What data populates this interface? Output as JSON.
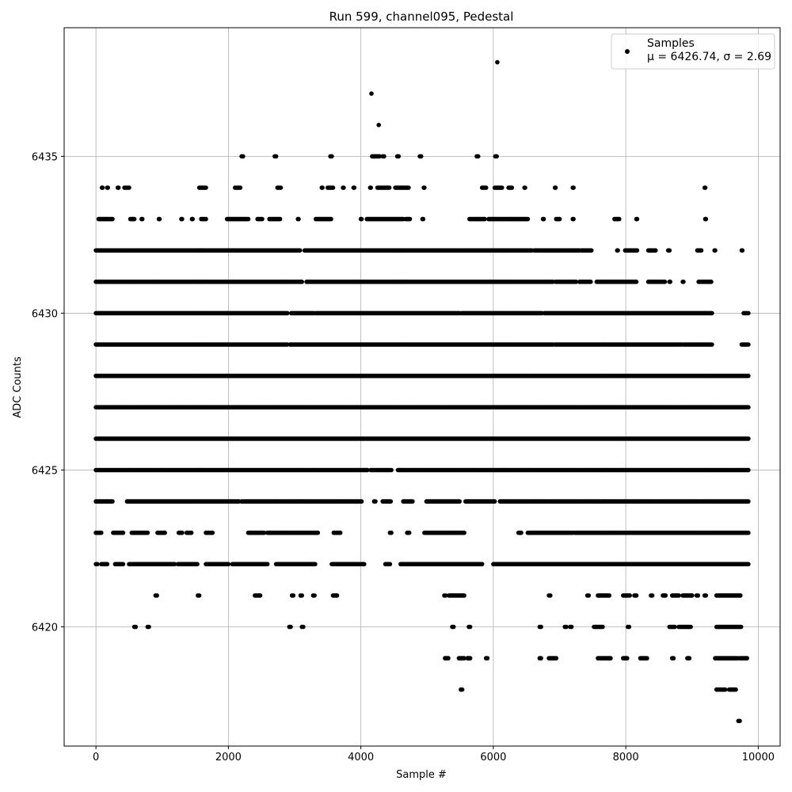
{
  "chart_data": {
    "type": "scatter",
    "title": "Run 599, channel095, Pedestal",
    "xlabel": "Sample #",
    "ylabel": "ADC Counts",
    "xlim": [
      -480,
      10330
    ],
    "ylim": [
      6416.2,
      6439.1
    ],
    "xticks": [
      0,
      2000,
      4000,
      6000,
      8000,
      10000
    ],
    "xtick_labels": [
      "0",
      "2000",
      "4000",
      "6000",
      "8000",
      "10000"
    ],
    "yticks": [
      6420,
      6425,
      6430,
      6435
    ],
    "ytick_labels": [
      "6420",
      "6425",
      "6430",
      "6435"
    ],
    "grid": true,
    "legend": {
      "placement": "top-right",
      "series_label": "Samples",
      "stats_label": "μ = 6426.74, σ = 2.69"
    },
    "marker_color": "#000000",
    "series": [
      {
        "name": "Samples",
        "x_range": [
          0,
          9850
        ],
        "level_bands": [
          {
            "y": 6435,
            "x_ranges": [
              [
                2200,
                2220
              ],
              [
                2700,
                2720
              ],
              [
                3540,
                3560
              ],
              [
                4170,
                4280
              ],
              [
                4330,
                4350
              ],
              [
                4550,
                4570
              ],
              [
                4890,
                4910
              ],
              [
                5750,
                5770
              ],
              [
                6030,
                6050
              ]
            ]
          },
          {
            "y": 6434,
            "x_ranges": [
              [
                90,
                100
              ],
              [
                170,
                180
              ],
              [
                330,
                340
              ],
              [
                430,
                500
              ],
              [
                1560,
                1660
              ],
              [
                2100,
                2180
              ],
              [
                2740,
                2790
              ],
              [
                3410,
                3420
              ],
              [
                3500,
                3580
              ],
              [
                3730,
                3740
              ],
              [
                3890,
                3900
              ],
              [
                4140,
                4150
              ],
              [
                4250,
                4430
              ],
              [
                4520,
                4720
              ],
              [
                4950,
                4960
              ],
              [
                5830,
                5890
              ],
              [
                6020,
                6130
              ],
              [
                6230,
                6280
              ],
              [
                6470,
                6480
              ],
              [
                6930,
                6940
              ],
              [
                7200,
                7210
              ],
              [
                9190,
                9200
              ]
            ]
          },
          {
            "y": 6433,
            "x_ranges": [
              [
                40,
                250
              ],
              [
                520,
                580
              ],
              [
                690,
                700
              ],
              [
                950,
                960
              ],
              [
                1290,
                1300
              ],
              [
                1450,
                1460
              ],
              [
                1590,
                1660
              ],
              [
                1980,
                2300
              ],
              [
                2440,
                2510
              ],
              [
                2620,
                2780
              ],
              [
                3050,
                3060
              ],
              [
                3320,
                3550
              ],
              [
                4000,
                4010
              ],
              [
                4090,
                4640
              ],
              [
                4680,
                4740
              ],
              [
                4930,
                4940
              ],
              [
                5640,
                5870
              ],
              [
                5930,
                6190
              ],
              [
                6210,
                6520
              ],
              [
                6750,
                6760
              ],
              [
                6950,
                7000
              ],
              [
                7200,
                7210
              ],
              [
                7830,
                7900
              ],
              [
                8160,
                8170
              ],
              [
                9200,
                9210
              ]
            ]
          },
          {
            "y": 6432,
            "x_ranges": [
              [
                0,
                3080
              ],
              [
                3150,
                6580
              ],
              [
                6620,
                7300
              ],
              [
                7330,
                7480
              ],
              [
                7870,
                7880
              ],
              [
                7990,
                8170
              ],
              [
                8340,
                8450
              ],
              [
                8640,
                8660
              ],
              [
                9080,
                9140
              ],
              [
                9340,
                9350
              ],
              [
                9750,
                9760
              ]
            ]
          },
          {
            "y": 6431,
            "x_ranges": [
              [
                0,
                3110
              ],
              [
                3180,
                6900
              ],
              [
                6940,
                7250
              ],
              [
                7300,
                7470
              ],
              [
                7560,
                8160
              ],
              [
                8340,
                8590
              ],
              [
                8660,
                8670
              ],
              [
                8860,
                8870
              ],
              [
                9100,
                9290
              ]
            ]
          },
          {
            "y": 6430,
            "x_ranges": [
              [
                0,
                2890
              ],
              [
                2950,
                3290
              ],
              [
                3320,
                5490
              ],
              [
                5520,
                6730
              ],
              [
                6770,
                9300
              ],
              [
                9780,
                9850
              ]
            ]
          },
          {
            "y": 6429,
            "x_ranges": [
              [
                0,
                2890
              ],
              [
                2930,
                6900
              ],
              [
                6930,
                8840
              ],
              [
                8870,
                9300
              ],
              [
                9750,
                9850
              ]
            ]
          },
          {
            "y": 6428,
            "x_ranges": [
              [
                0,
                9850
              ]
            ]
          },
          {
            "y": 6427,
            "x_ranges": [
              [
                0,
                9850
              ]
            ]
          },
          {
            "y": 6426,
            "x_ranges": [
              [
                0,
                9850
              ]
            ]
          },
          {
            "y": 6425,
            "x_ranges": [
              [
                0,
                4100
              ],
              [
                4150,
                4460
              ],
              [
                4560,
                9850
              ]
            ]
          },
          {
            "y": 6424,
            "x_ranges": [
              [
                0,
                250
              ],
              [
                470,
                2160
              ],
              [
                2200,
                3290
              ],
              [
                3310,
                4010
              ],
              [
                4200,
                4220
              ],
              [
                4330,
                4450
              ],
              [
                4640,
                4780
              ],
              [
                4990,
                5490
              ],
              [
                5580,
                6020
              ],
              [
                6100,
                9850
              ]
            ]
          },
          {
            "y": 6423,
            "x_ranges": [
              [
                0,
                80
              ],
              [
                260,
                410
              ],
              [
                540,
                780
              ],
              [
                930,
                1040
              ],
              [
                1250,
                1300
              ],
              [
                1370,
                1440
              ],
              [
                1660,
                1760
              ],
              [
                2300,
                2540
              ],
              [
                2590,
                3350
              ],
              [
                3590,
                3690
              ],
              [
                4440,
                4460
              ],
              [
                4700,
                4730
              ],
              [
                4960,
                5560
              ],
              [
                6380,
                6420
              ],
              [
                6520,
                7200
              ],
              [
                7230,
                9850
              ]
            ]
          },
          {
            "y": 6422,
            "x_ranges": [
              [
                0,
                20
              ],
              [
                80,
                170
              ],
              [
                290,
                410
              ],
              [
                500,
                1190
              ],
              [
                1240,
                1530
              ],
              [
                1660,
                2000
              ],
              [
                2060,
                2590
              ],
              [
                2720,
                3310
              ],
              [
                3560,
                4050
              ],
              [
                4370,
                4440
              ],
              [
                4600,
                5830
              ],
              [
                6000,
                9850
              ]
            ]
          },
          {
            "y": 6421,
            "x_ranges": [
              [
                900,
                920
              ],
              [
                1540,
                1560
              ],
              [
                2400,
                2480
              ],
              [
                2960,
                2980
              ],
              [
                3090,
                3110
              ],
              [
                3280,
                3300
              ],
              [
                3580,
                3640
              ],
              [
                5260,
                5280
              ],
              [
                5330,
                5560
              ],
              [
                6840,
                6860
              ],
              [
                7420,
                7440
              ],
              [
                7580,
                7750
              ],
              [
                7960,
                8060
              ],
              [
                8130,
                8160
              ],
              [
                8380,
                8400
              ],
              [
                8560,
                8600
              ],
              [
                8700,
                8800
              ],
              [
                8860,
                9000
              ],
              [
                9070,
                9090
              ],
              [
                9190,
                9210
              ],
              [
                9370,
                9730
              ]
            ]
          },
          {
            "y": 6420,
            "x_ranges": [
              [
                580,
                600
              ],
              [
                780,
                800
              ],
              [
                2920,
                2940
              ],
              [
                3110,
                3130
              ],
              [
                5380,
                5400
              ],
              [
                5630,
                5650
              ],
              [
                6700,
                6720
              ],
              [
                7080,
                7100
              ],
              [
                7160,
                7180
              ],
              [
                7520,
                7650
              ],
              [
                8030,
                8050
              ],
              [
                8660,
                8740
              ],
              [
                8800,
                8980
              ],
              [
                9370,
                9740
              ]
            ]
          },
          {
            "y": 6419,
            "x_ranges": [
              [
                5270,
                5320
              ],
              [
                5480,
                5560
              ],
              [
                5610,
                5650
              ],
              [
                5890,
                5910
              ],
              [
                6700,
                6720
              ],
              [
                6840,
                6950
              ],
              [
                7580,
                7770
              ],
              [
                7960,
                8020
              ],
              [
                8220,
                8320
              ],
              [
                8700,
                8720
              ],
              [
                8930,
                8960
              ],
              [
                9350,
                9690
              ],
              [
                9720,
                9830
              ]
            ]
          },
          {
            "y": 6418,
            "x_ranges": [
              [
                5510,
                5530
              ],
              [
                9370,
                9500
              ],
              [
                9560,
                9660
              ]
            ]
          },
          {
            "y": 6417,
            "x_ranges": [
              [
                9700,
                9720
              ]
            ]
          }
        ],
        "extra_points": [
          {
            "x": 4160,
            "y": 6437
          },
          {
            "x": 4270,
            "y": 6436
          },
          {
            "x": 6060,
            "y": 6438
          }
        ]
      }
    ]
  }
}
